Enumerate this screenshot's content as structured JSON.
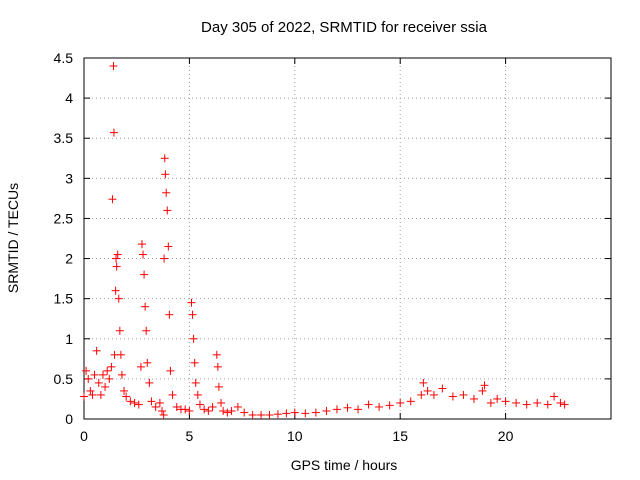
{
  "chart_data": {
    "type": "scatter",
    "title": "Day 305 of 2022, SRMTID for receiver ssia",
    "xlabel": "GPS time / hours",
    "ylabel": "SRMTID / TECUs",
    "xlim": [
      0,
      25
    ],
    "ylim": [
      0,
      4.5
    ],
    "x_ticks": [
      0,
      5,
      10,
      15,
      20
    ],
    "x_tick_labels": [
      "0",
      "5",
      "10",
      "15",
      "20"
    ],
    "y_ticks": [
      0,
      0.5,
      1,
      1.5,
      2,
      2.5,
      3,
      3.5,
      4,
      4.5
    ],
    "y_tick_labels": [
      "0",
      "0.5",
      "1",
      "1.5",
      "2",
      "2.5",
      "3",
      "3.5",
      "4",
      "4.5"
    ],
    "grid": true,
    "marker": "+",
    "color": "#ff0000",
    "series": [
      {
        "name": "SRMTID",
        "x": [
          0.0,
          0.1,
          0.2,
          0.3,
          0.4,
          0.5,
          0.6,
          0.7,
          0.8,
          0.9,
          1.0,
          1.1,
          1.2,
          1.3,
          1.35,
          1.4,
          1.42,
          1.45,
          1.5,
          1.52,
          1.55,
          1.6,
          1.65,
          1.7,
          1.75,
          1.8,
          1.9,
          2.0,
          2.2,
          2.4,
          2.6,
          2.7,
          2.75,
          2.8,
          2.85,
          2.9,
          2.95,
          3.0,
          3.1,
          3.2,
          3.4,
          3.6,
          3.7,
          3.78,
          3.8,
          3.83,
          3.86,
          3.9,
          3.95,
          4.0,
          4.05,
          4.1,
          4.2,
          4.4,
          4.6,
          4.8,
          5.0,
          5.1,
          5.15,
          5.2,
          5.25,
          5.3,
          5.4,
          5.5,
          5.7,
          5.9,
          6.1,
          6.3,
          6.35,
          6.4,
          6.5,
          6.6,
          6.8,
          7.0,
          7.3,
          7.6,
          8.0,
          8.4,
          8.8,
          9.2,
          9.6,
          10.0,
          10.5,
          11.0,
          11.5,
          12.0,
          12.5,
          13.0,
          13.5,
          14.0,
          14.5,
          15.0,
          15.5,
          16.0,
          16.1,
          16.3,
          16.6,
          17.0,
          17.5,
          18.0,
          18.5,
          18.9,
          19.0,
          19.3,
          19.6,
          20.0,
          20.5,
          21.0,
          21.5,
          22.0,
          22.3,
          22.6,
          22.8
        ],
        "y": [
          0.28,
          0.6,
          0.5,
          0.35,
          0.3,
          0.55,
          0.85,
          0.45,
          0.3,
          0.55,
          0.4,
          0.6,
          0.5,
          0.65,
          2.74,
          4.4,
          3.57,
          0.8,
          1.6,
          2.0,
          1.9,
          2.05,
          1.5,
          1.1,
          0.8,
          0.55,
          0.35,
          0.28,
          0.22,
          0.2,
          0.18,
          0.65,
          2.18,
          2.05,
          1.8,
          1.4,
          1.1,
          0.7,
          0.45,
          0.22,
          0.15,
          0.2,
          0.1,
          0.05,
          2.0,
          3.25,
          3.05,
          2.82,
          2.6,
          2.15,
          1.3,
          0.6,
          0.3,
          0.15,
          0.12,
          0.12,
          0.1,
          1.45,
          1.3,
          1.0,
          0.7,
          0.45,
          0.3,
          0.18,
          0.12,
          0.1,
          0.15,
          0.8,
          0.65,
          0.4,
          0.2,
          0.1,
          0.08,
          0.1,
          0.15,
          0.08,
          0.05,
          0.05,
          0.05,
          0.06,
          0.07,
          0.08,
          0.07,
          0.08,
          0.1,
          0.12,
          0.14,
          0.12,
          0.18,
          0.15,
          0.17,
          0.2,
          0.22,
          0.3,
          0.45,
          0.35,
          0.3,
          0.38,
          0.28,
          0.3,
          0.25,
          0.35,
          0.42,
          0.2,
          0.25,
          0.22,
          0.2,
          0.18,
          0.2,
          0.18,
          0.28,
          0.2,
          0.18
        ]
      }
    ]
  }
}
